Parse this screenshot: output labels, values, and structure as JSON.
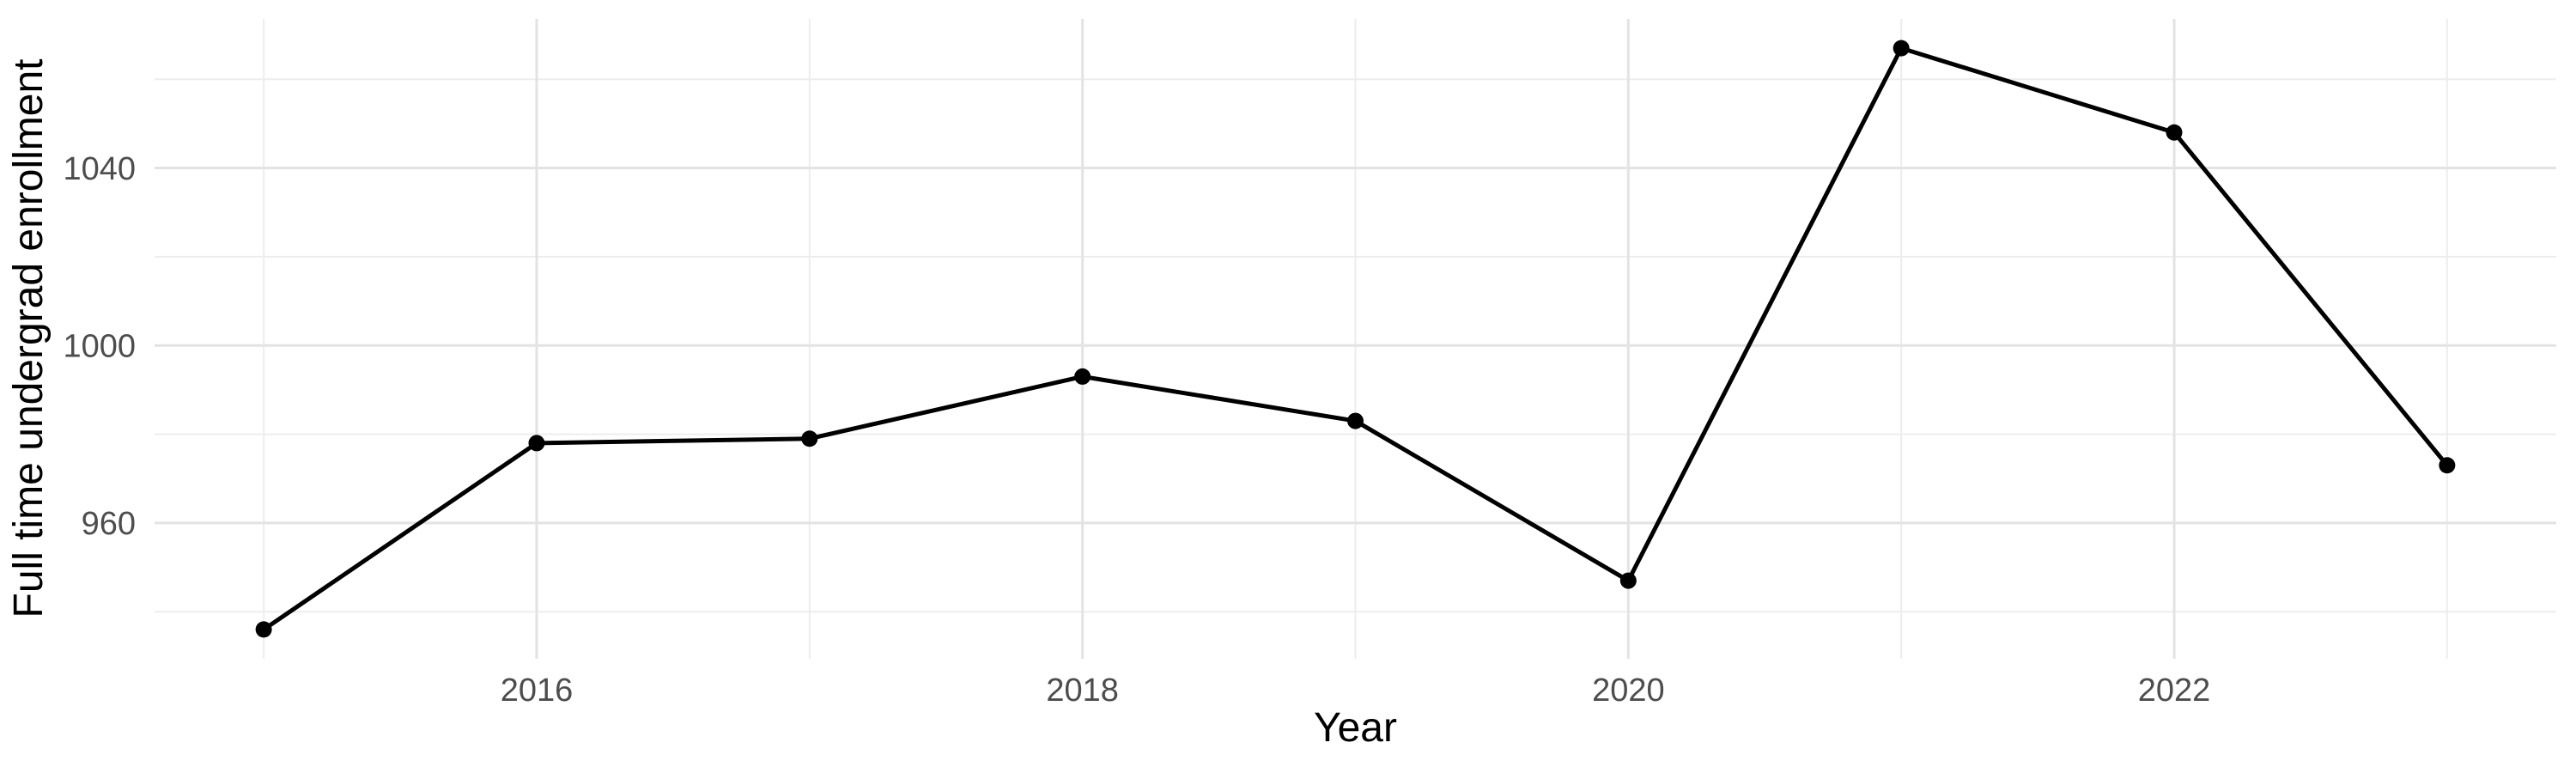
{
  "figure": {
    "background": "#ffffff"
  },
  "chart_data": {
    "type": "line",
    "title": "",
    "xlabel": "Year",
    "ylabel": "Full time undergrad enrollment",
    "x": [
      2015,
      2016,
      2017,
      2018,
      2019,
      2020,
      2021,
      2022,
      2023
    ],
    "series": [
      {
        "name": "Full time undergrad enrollment",
        "values": [
          936,
          978,
          979,
          993,
          983,
          947,
          1067,
          1048,
          973
        ]
      }
    ],
    "xlim": [
      2014.6,
      2023.4
    ],
    "ylim": [
      929.4,
      1073.6
    ],
    "x_ticks": [
      2016,
      2018,
      2020,
      2022
    ],
    "x_tick_labels": [
      "2016",
      "2018",
      "2020",
      "2022"
    ],
    "x_minor_grid": [
      2015,
      2017,
      2019,
      2021,
      2023
    ],
    "y_ticks": [
      960,
      1000,
      1040
    ],
    "y_tick_labels": [
      "960",
      "1000",
      "1040"
    ],
    "y_minor_grid": [
      940,
      980,
      1020,
      1060
    ],
    "grid": "major+minor",
    "legend": "none",
    "style": "ggplot-minimal",
    "colors": {
      "line": "#000000",
      "point": "#000000",
      "grid_major": "#e3e3e3",
      "grid_minor": "#ededed",
      "tick_label": "#4d4d4d",
      "axis_title": "#000000",
      "panel_background": "#ffffff"
    }
  }
}
